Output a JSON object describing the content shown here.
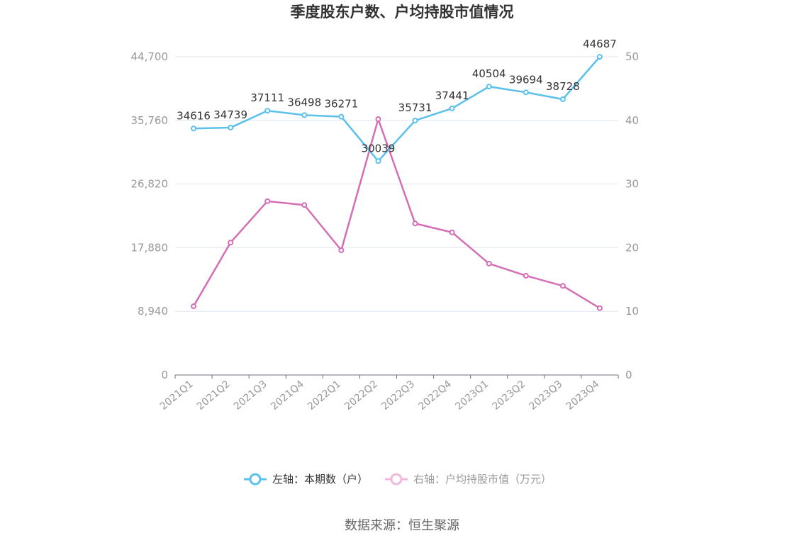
{
  "chart_data": {
    "type": "line",
    "title": "季度股东户数、户均持股市值情况",
    "categories": [
      "2021Q1",
      "2021Q2",
      "2021Q3",
      "2021Q4",
      "2022Q1",
      "2022Q2",
      "2022Q3",
      "2022Q4",
      "2023Q1",
      "2023Q2",
      "2023Q3",
      "2023Q4"
    ],
    "left_axis": {
      "ticks": [
        "0",
        "8,940",
        "17,880",
        "26,820",
        "35,760",
        "44,700"
      ],
      "ylim": [
        0,
        44700
      ]
    },
    "right_axis": {
      "ticks": [
        "0",
        "10",
        "20",
        "30",
        "40",
        "50"
      ],
      "ylim": [
        0,
        50
      ]
    },
    "series": [
      {
        "name": "左轴：本期数（户）",
        "axis": "left",
        "color": "#5bc0eb",
        "values": [
          34616,
          34739,
          37111,
          36498,
          36271,
          30039,
          35731,
          37441,
          40504,
          39694,
          38728,
          44687
        ],
        "labels": [
          "34616",
          "34739",
          "37111",
          "36498",
          "36271",
          "30039",
          "35731",
          "37441",
          "40504",
          "39694",
          "38728",
          "44687"
        ]
      },
      {
        "name": "右轴：户均持股市值（万元）",
        "axis": "right",
        "color": "#d46fb5",
        "legend_color": "#f2b8dc",
        "values": [
          10.8,
          20.8,
          27.3,
          26.7,
          19.6,
          40.2,
          23.8,
          22.4,
          17.5,
          15.6,
          14.0,
          10.5
        ]
      }
    ],
    "grid": true,
    "legend_position": "bottom-center"
  },
  "source_text": "数据来源：恒生聚源"
}
